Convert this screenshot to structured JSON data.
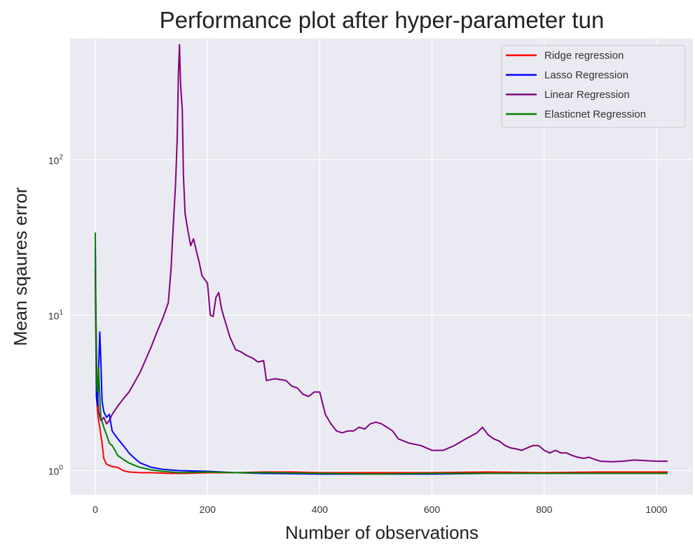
{
  "chart_data": {
    "type": "line",
    "title": "Performance plot after hyper-parameter tun",
    "xlabel": "Number of observations",
    "ylabel": "Mean sqaures error",
    "xlim": [
      -45,
      1065
    ],
    "ylim_log10": [
      -0.155,
      2.78
    ],
    "yscale": "log",
    "grid": true,
    "legend_position": "top-right",
    "background": "#eaeaf2",
    "x_ticks": [
      0,
      200,
      400,
      600,
      800,
      1000
    ],
    "y_ticks": [
      {
        "value": 1,
        "base": "10",
        "exp": "0"
      },
      {
        "value": 10,
        "base": "10",
        "exp": "1"
      },
      {
        "value": 100,
        "base": "10",
        "exp": "2"
      }
    ],
    "series": [
      {
        "name": "Ridge regression",
        "color": "#ff0000",
        "points": [
          [
            0,
            18
          ],
          [
            2,
            3
          ],
          [
            5,
            2.2
          ],
          [
            8,
            1.9
          ],
          [
            12,
            1.5
          ],
          [
            15,
            1.2
          ],
          [
            20,
            1.1
          ],
          [
            30,
            1.06
          ],
          [
            40,
            1.05
          ],
          [
            50,
            1.0
          ],
          [
            60,
            0.98
          ],
          [
            80,
            0.97
          ],
          [
            100,
            0.97
          ],
          [
            130,
            0.96
          ],
          [
            160,
            0.96
          ],
          [
            200,
            0.97
          ],
          [
            250,
            0.97
          ],
          [
            300,
            0.98
          ],
          [
            350,
            0.98
          ],
          [
            400,
            0.97
          ],
          [
            500,
            0.97
          ],
          [
            600,
            0.97
          ],
          [
            700,
            0.98
          ],
          [
            800,
            0.97
          ],
          [
            900,
            0.98
          ],
          [
            1020,
            0.98
          ]
        ]
      },
      {
        "name": "Lasso Regression",
        "color": "#0000ff",
        "points": [
          [
            0,
            27
          ],
          [
            2,
            3
          ],
          [
            4,
            2.6
          ],
          [
            6,
            4.5
          ],
          [
            8,
            7.8
          ],
          [
            10,
            5
          ],
          [
            12,
            2.8
          ],
          [
            15,
            2.4
          ],
          [
            20,
            2.2
          ],
          [
            25,
            2.3
          ],
          [
            30,
            1.8
          ],
          [
            40,
            1.6
          ],
          [
            50,
            1.45
          ],
          [
            60,
            1.3
          ],
          [
            70,
            1.2
          ],
          [
            80,
            1.12
          ],
          [
            100,
            1.05
          ],
          [
            120,
            1.02
          ],
          [
            150,
            1.0
          ],
          [
            200,
            0.99
          ],
          [
            250,
            0.97
          ],
          [
            300,
            0.96
          ],
          [
            400,
            0.95
          ],
          [
            500,
            0.95
          ],
          [
            600,
            0.95
          ],
          [
            700,
            0.96
          ],
          [
            800,
            0.96
          ],
          [
            900,
            0.96
          ],
          [
            1020,
            0.96
          ]
        ]
      },
      {
        "name": "Linear Regression",
        "color": "#800080",
        "points": [
          [
            0,
            20
          ],
          [
            3,
            3.5
          ],
          [
            6,
            2.4
          ],
          [
            10,
            2.1
          ],
          [
            15,
            2.2
          ],
          [
            20,
            2.0
          ],
          [
            25,
            2.1
          ],
          [
            30,
            2.3
          ],
          [
            40,
            2.6
          ],
          [
            50,
            2.9
          ],
          [
            60,
            3.2
          ],
          [
            70,
            3.7
          ],
          [
            80,
            4.3
          ],
          [
            90,
            5.2
          ],
          [
            100,
            6.3
          ],
          [
            110,
            7.8
          ],
          [
            120,
            9.5
          ],
          [
            130,
            12
          ],
          [
            135,
            20
          ],
          [
            140,
            45
          ],
          [
            143,
            70
          ],
          [
            146,
            140
          ],
          [
            148,
            350
          ],
          [
            150,
            550
          ],
          [
            152,
            300
          ],
          [
            155,
            210
          ],
          [
            157,
            80
          ],
          [
            160,
            45
          ],
          [
            165,
            35
          ],
          [
            170,
            28
          ],
          [
            175,
            31
          ],
          [
            180,
            26
          ],
          [
            185,
            22
          ],
          [
            190,
            18
          ],
          [
            200,
            16
          ],
          [
            205,
            10
          ],
          [
            210,
            9.8
          ],
          [
            215,
            13
          ],
          [
            220,
            14
          ],
          [
            225,
            11
          ],
          [
            230,
            9.5
          ],
          [
            240,
            7.2
          ],
          [
            250,
            6.0
          ],
          [
            260,
            5.8
          ],
          [
            270,
            5.5
          ],
          [
            280,
            5.3
          ],
          [
            290,
            5.0
          ],
          [
            300,
            5.1
          ],
          [
            305,
            3.8
          ],
          [
            320,
            3.9
          ],
          [
            340,
            3.8
          ],
          [
            350,
            3.5
          ],
          [
            360,
            3.4
          ],
          [
            370,
            3.1
          ],
          [
            380,
            3.0
          ],
          [
            390,
            3.2
          ],
          [
            400,
            3.2
          ],
          [
            410,
            2.3
          ],
          [
            420,
            2.0
          ],
          [
            430,
            1.8
          ],
          [
            440,
            1.75
          ],
          [
            450,
            1.8
          ],
          [
            460,
            1.8
          ],
          [
            470,
            1.9
          ],
          [
            480,
            1.85
          ],
          [
            490,
            2.0
          ],
          [
            500,
            2.05
          ],
          [
            510,
            2.0
          ],
          [
            520,
            1.9
          ],
          [
            530,
            1.8
          ],
          [
            540,
            1.6
          ],
          [
            550,
            1.55
          ],
          [
            560,
            1.5
          ],
          [
            580,
            1.45
          ],
          [
            600,
            1.35
          ],
          [
            620,
            1.35
          ],
          [
            640,
            1.45
          ],
          [
            660,
            1.6
          ],
          [
            680,
            1.75
          ],
          [
            690,
            1.9
          ],
          [
            700,
            1.7
          ],
          [
            710,
            1.6
          ],
          [
            720,
            1.55
          ],
          [
            730,
            1.45
          ],
          [
            740,
            1.4
          ],
          [
            750,
            1.38
          ],
          [
            760,
            1.35
          ],
          [
            770,
            1.4
          ],
          [
            780,
            1.45
          ],
          [
            790,
            1.45
          ],
          [
            800,
            1.35
          ],
          [
            810,
            1.3
          ],
          [
            820,
            1.35
          ],
          [
            830,
            1.3
          ],
          [
            840,
            1.3
          ],
          [
            850,
            1.25
          ],
          [
            860,
            1.22
          ],
          [
            870,
            1.2
          ],
          [
            880,
            1.22
          ],
          [
            890,
            1.18
          ],
          [
            900,
            1.15
          ],
          [
            920,
            1.14
          ],
          [
            940,
            1.15
          ],
          [
            960,
            1.17
          ],
          [
            980,
            1.16
          ],
          [
            1000,
            1.15
          ],
          [
            1020,
            1.15
          ]
        ]
      },
      {
        "name": "Elasticnet Regression",
        "color": "#008000",
        "points": [
          [
            0,
            34
          ],
          [
            2,
            4
          ],
          [
            4,
            3.2
          ],
          [
            6,
            4.6
          ],
          [
            8,
            3.0
          ],
          [
            10,
            2.2
          ],
          [
            15,
            1.9
          ],
          [
            20,
            1.7
          ],
          [
            25,
            1.5
          ],
          [
            30,
            1.45
          ],
          [
            35,
            1.35
          ],
          [
            40,
            1.25
          ],
          [
            50,
            1.18
          ],
          [
            60,
            1.12
          ],
          [
            70,
            1.08
          ],
          [
            80,
            1.05
          ],
          [
            100,
            1.01
          ],
          [
            120,
            0.99
          ],
          [
            150,
            0.97
          ],
          [
            200,
            0.98
          ],
          [
            250,
            0.97
          ],
          [
            300,
            0.97
          ],
          [
            400,
            0.96
          ],
          [
            500,
            0.95
          ],
          [
            600,
            0.96
          ],
          [
            700,
            0.96
          ],
          [
            800,
            0.96
          ],
          [
            900,
            0.96
          ],
          [
            1020,
            0.96
          ]
        ]
      }
    ]
  }
}
